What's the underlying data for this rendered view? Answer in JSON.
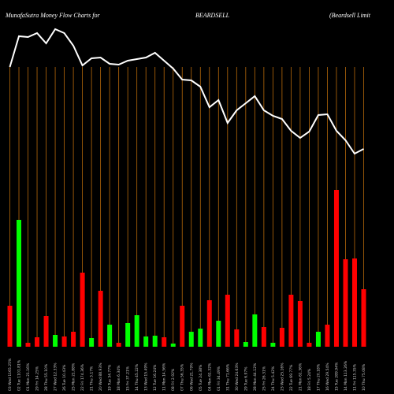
{
  "chart_data": {
    "type": "moneyflow",
    "title": "MunafaSutra  Money Flow  Charts for",
    "symbol": "BEARDSELL",
    "company": "(Beardsell Limit",
    "categories": [
      "03 Wed 1165.25%",
      "02 Tue 1101.81%",
      "01 Mon 21.16%",
      "29 Fri 14.25%",
      "28 Thu 55.10%",
      "27 Wed 12.33%",
      "26 Tue 10.43%",
      "25 Mon 21.88%",
      "22 Fri 174.36%",
      "21 Thu 3.17%",
      "20 Wed 88.93%",
      "19 Tue 34.77%",
      "18 Mon 6.34%",
      "15 Fri 37.21%",
      "14 Thu 45.22%",
      "13 Wed 15.49%",
      "12 Tue 16.24%",
      "11 Mon 14.56%",
      "08 Fri 2.92%",
      "07 Thu 56.35%",
      "06 Wed 21.79%",
      "05 Tue 24.38%",
      "04 Mon 61.32%",
      "01 Fri 34.49%",
      "31 Thu 71.66%",
      "30 Wed 24.63%",
      "29 Tue 6.97%",
      "28 Mon 44.12%",
      "25 Fri 26.31%",
      "24 Thu 5.42%",
      "23 Wed 25.16%",
      "22 Tue 69.77%",
      "21 Mon 61.36%",
      "18 Fri 5.24%",
      "17 Thu 20.18%",
      "16 Wed 29.54%",
      "15 Tue 289.94%",
      "14 Mon 113.26%",
      "11 Fri 115.35%",
      "10 Thu 75.08%"
    ],
    "flow": [
      52,
      161,
      5,
      12,
      39,
      15,
      13,
      19,
      94,
      11,
      71,
      28,
      5,
      30,
      40,
      13,
      14,
      12,
      4,
      52,
      19,
      23,
      59,
      33,
      66,
      22,
      6,
      41,
      25,
      5,
      24,
      66,
      58,
      5,
      19,
      28,
      199,
      111,
      112,
      73
    ],
    "flow_colors": [
      "#ff0000",
      "#00ff00",
      "#ff0000",
      "#ff0000",
      "#ff0000",
      "#00ff00",
      "#ff0000",
      "#ff0000",
      "#ff0000",
      "#00ff00",
      "#ff0000",
      "#00ff00",
      "#ff0000",
      "#00ff00",
      "#00ff00",
      "#00ff00",
      "#00ff00",
      "#ff0000",
      "#00ff00",
      "#ff0000",
      "#00ff00",
      "#00ff00",
      "#ff0000",
      "#00ff00",
      "#ff0000",
      "#ff0000",
      "#00ff00",
      "#00ff00",
      "#ff0000",
      "#00ff00",
      "#ff0000",
      "#ff0000",
      "#ff0000",
      "#ff0000",
      "#00ff00",
      "#ff0000",
      "#ff0000",
      "#ff0000",
      "#ff0000",
      "#ff0000"
    ],
    "price": [
      415,
      454,
      453,
      458,
      445,
      463,
      458,
      442,
      417,
      426,
      427,
      419,
      418,
      423,
      425,
      427,
      433,
      423,
      413,
      399,
      398,
      390,
      364,
      373,
      344,
      360,
      369,
      378,
      360,
      353,
      349,
      334,
      325,
      333,
      354,
      355,
      334,
      322,
      305,
      311
    ],
    "price_color": "#ffffff",
    "ylim": [
      0,
      500
    ],
    "y2lim": [
      0,
      440
    ],
    "grid_color": "#b8690a"
  }
}
